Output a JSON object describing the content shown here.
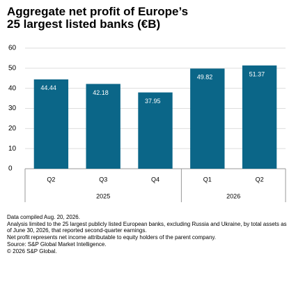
{
  "chart_data": {
    "type": "bar",
    "title": "Aggregate net profit of Europe’s 25 largest listed banks (€B)",
    "groups": [
      {
        "label": "2025",
        "categories": [
          "Q2",
          "Q3",
          "Q4"
        ]
      },
      {
        "label": "2026",
        "categories": [
          "Q1",
          "Q2"
        ]
      }
    ],
    "values": [
      44.44,
      42.18,
      37.95,
      49.82,
      51.37
    ],
    "color": "#0b6688",
    "ylim": [
      0,
      60
    ],
    "yticks": [
      0,
      10,
      20,
      30,
      40,
      50,
      60
    ],
    "grid": true,
    "notes": [
      "Data compiled Aug. 20, 2026.",
      "Analysis limited to the 25 largest publicly listed European banks, excluding Russia and Ukraine, by total assets as of June 30, 2026, that reported second-quarter earnings.",
      "Net profit represents net income attributable to equity holders of the parent company.",
      "Source: S&P Global Market Intelligence.",
      "© 2026 S&P Global."
    ]
  }
}
